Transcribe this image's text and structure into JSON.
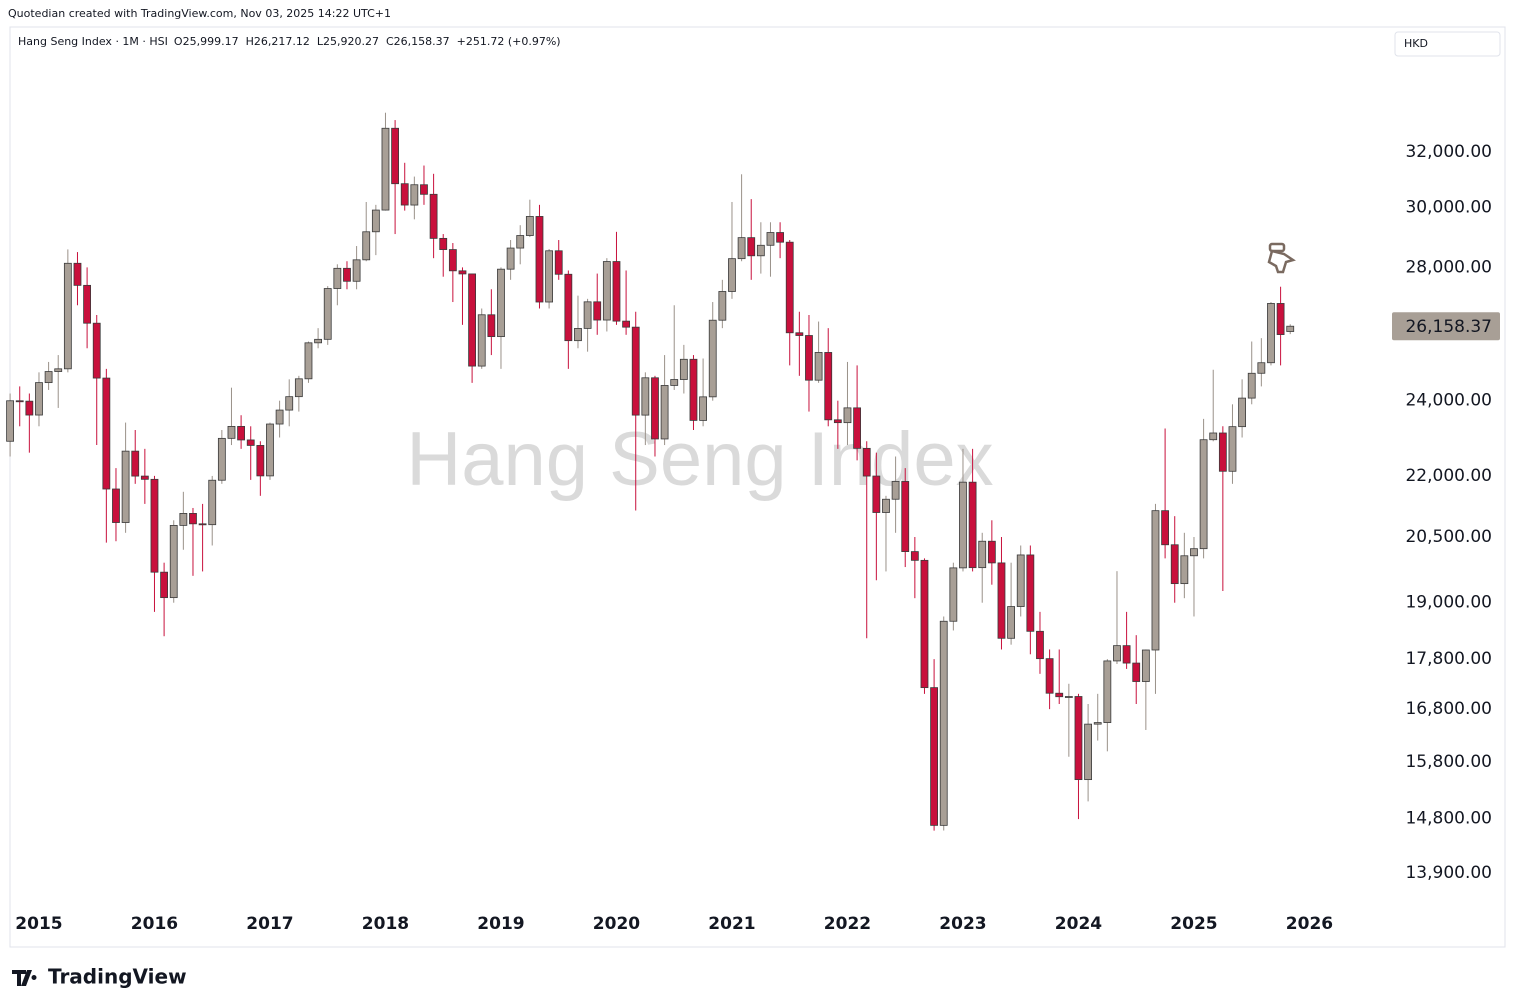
{
  "header": {
    "credit": "Quotedian created with TradingView.com, Nov 03, 2025 14:22 UTC+1",
    "symbol": "Hang Seng Index · 1M · HSI",
    "ohlc_labels": [
      "O25,999.17",
      "H26,217.12",
      "L25,920.27",
      "C26,158.37",
      "+251.72 (+0.97%)"
    ],
    "currency": "HKD",
    "brand": "TradingView"
  },
  "chart_data": {
    "type": "candlestick",
    "title": "Hang Seng Index",
    "log_scale": true,
    "grid": false,
    "up_color": "#a89f96",
    "down_color": "#c8103c",
    "border_color": "#3a3a3a",
    "categories": [
      null,
      null,
      null,
      "2015",
      null,
      null,
      null,
      null,
      null,
      null,
      null,
      null,
      null,
      null,
      null,
      "2016",
      null,
      null,
      null,
      null,
      null,
      null,
      null,
      null,
      null,
      null,
      null,
      "2017",
      null,
      null,
      null,
      null,
      null,
      null,
      null,
      null,
      null,
      null,
      null,
      "2018",
      null,
      null,
      null,
      null,
      null,
      null,
      null,
      null,
      null,
      null,
      null,
      "2019",
      null,
      null,
      null,
      null,
      null,
      null,
      null,
      null,
      null,
      null,
      null,
      "2020",
      null,
      null,
      null,
      null,
      null,
      null,
      null,
      null,
      null,
      null,
      null,
      "2021",
      null,
      null,
      null,
      null,
      null,
      null,
      null,
      null,
      null,
      null,
      null,
      "2022",
      null,
      null,
      null,
      null,
      null,
      null,
      null,
      null,
      null,
      null,
      null,
      "2023",
      null,
      null,
      null,
      null,
      null,
      null,
      null,
      null,
      null,
      null,
      null,
      "2024",
      null,
      null,
      null,
      null,
      null,
      null,
      null,
      null,
      null,
      null,
      null,
      "2025",
      null,
      null,
      null,
      null,
      null,
      null,
      null,
      null,
      null,
      null,
      null,
      "2026"
    ],
    "open": [
      22900,
      23998,
      23987,
      23605,
      24507,
      24823,
      24901,
      28133,
      27424,
      26250,
      24636,
      21670,
      20846,
      22640,
      21996,
      21914,
      19683,
      19112,
      20777,
      21067,
      20815,
      20794,
      21891,
      22977,
      23297,
      22935,
      22790,
      22001,
      23361,
      23741,
      24112,
      24615,
      25661,
      25765,
      27324,
      27970,
      27554,
      28246,
      29177,
      29919,
      32887,
      30845,
      30093,
      30808,
      30469,
      28955,
      28583,
      27889,
      27789,
      24980,
      26507,
      25846,
      27942,
      28633,
      29051,
      29699,
      26901,
      28543,
      27778,
      25725,
      26092,
      26907,
      26346,
      28190,
      26313,
      26130,
      23603,
      24644,
      22961,
      24427,
      24595,
      25177,
      23459,
      24107,
      26341,
      27231,
      28284,
      28980,
      28378,
      28725,
      29152,
      28828,
      25961,
      25879,
      24576,
      25377,
      23475,
      23398,
      23802,
      22713,
      21997,
      21089,
      21415,
      21860,
      20157,
      19954,
      17223,
      14687,
      18597,
      19781,
      21842,
      19786,
      20400,
      19895,
      18234,
      18916,
      20079,
      18382,
      17810,
      17112,
      17043,
      17047,
      15485,
      16511,
      16541,
      17763,
      18080,
      17719,
      17345,
      17989,
      21134,
      20317,
      19424,
      20060,
      20225,
      22941,
      23120,
      22119,
      23290,
      24072,
      24773,
      25077,
      26856,
      25999.17,
      null,
      null
    ],
    "high": [
      24200,
      24400,
      24200,
      24800,
      25100,
      25300,
      28588,
      28500,
      28000,
      26500,
      24900,
      22200,
      23400,
      23200,
      22700,
      22000,
      19900,
      20900,
      21600,
      21200,
      21300,
      22000,
      23200,
      24364,
      23600,
      23300,
      22900,
      23400,
      24000,
      24600,
      24700,
      25700,
      26100,
      27400,
      28100,
      28200,
      28700,
      30200,
      30100,
      33484,
      33200,
      31600,
      31100,
      31500,
      31200,
      29100,
      28800,
      28000,
      27800,
      26700,
      27300,
      28000,
      28900,
      29400,
      30280,
      30100,
      28600,
      28900,
      27900,
      27100,
      27000,
      27800,
      28300,
      29175,
      27900,
      26600,
      24800,
      24700,
      25300,
      26800,
      25600,
      25300,
      25200,
      26900,
      27600,
      30200,
      31183,
      30300,
      29500,
      29500,
      29500,
      28900,
      26600,
      26500,
      26300,
      26100,
      24000,
      25100,
      25000,
      22900,
      22600,
      21500,
      22500,
      22200,
      20500,
      20000,
      17800,
      18700,
      19900,
      22700,
      22700,
      20600,
      20900,
      20500,
      19900,
      20300,
      20300,
      18800,
      18000,
      18000,
      17300,
      17100,
      16900,
      17100,
      17800,
      19706,
      18800,
      18300,
      18000,
      21300,
      23241,
      21000,
      20600,
      20500,
      23500,
      24874,
      23300,
      23900,
      24600,
      25700,
      25800,
      26900,
      27381,
      26217.12,
      null,
      null
    ],
    "low": [
      22500,
      23300,
      22600,
      23300,
      24300,
      23800,
      24800,
      26800,
      25500,
      22800,
      20368,
      20400,
      20600,
      21800,
      21300,
      18800,
      18278,
      19000,
      20200,
      19600,
      19700,
      20300,
      21800,
      22800,
      22700,
      21900,
      21500,
      21900,
      23000,
      23300,
      23700,
      24500,
      25500,
      25600,
      26800,
      27300,
      27300,
      28200,
      28400,
      29900,
      29100,
      29900,
      29600,
      30100,
      28300,
      27700,
      26900,
      26200,
      24500,
      24900,
      25300,
      24900,
      27600,
      28100,
      29000,
      26700,
      26700,
      27600,
      24900,
      25500,
      25400,
      25900,
      26000,
      26200,
      25900,
      21139,
      22800,
      22500,
      22800,
      24300,
      24200,
      23200,
      23300,
      24000,
      26100,
      27000,
      28200,
      27600,
      27800,
      27700,
      28300,
      25000,
      24700,
      23700,
      24500,
      23300,
      22700,
      22800,
      22400,
      18235,
      19500,
      19700,
      20600,
      19800,
      19100,
      17100,
      14597,
      14600,
      18400,
      19700,
      19700,
      19000,
      19400,
      18000,
      18100,
      18700,
      17900,
      17500,
      16800,
      16900,
      15900,
      14794,
      15100,
      16200,
      16000,
      17700,
      17600,
      16900,
      16400,
      17100,
      20000,
      19000,
      19100,
      18700,
      20000,
      22900,
      19260,
      21800,
      23000,
      23900,
      24400,
      25000,
      25000,
      25920.27,
      null,
      null
    ],
    "close": [
      23998,
      23987,
      23605,
      24507,
      24823,
      24901,
      28133,
      27424,
      26250,
      24636,
      21670,
      20846,
      22640,
      21996,
      21914,
      19683,
      19112,
      20777,
      21067,
      20815,
      20794,
      21891,
      22977,
      23297,
      22935,
      22790,
      22001,
      23361,
      23741,
      24112,
      24615,
      25661,
      25765,
      27324,
      27970,
      27554,
      28246,
      29177,
      29919,
      32887,
      30845,
      30093,
      30808,
      30469,
      28955,
      28583,
      27889,
      27789,
      24980,
      26507,
      25846,
      27942,
      28633,
      29051,
      29699,
      26901,
      28543,
      27778,
      25725,
      26092,
      26907,
      26346,
      28190,
      26313,
      26130,
      23603,
      24644,
      22961,
      24427,
      24595,
      25177,
      23459,
      24107,
      26341,
      27231,
      28284,
      28980,
      28378,
      28725,
      29152,
      28828,
      25961,
      25879,
      24576,
      25377,
      23475,
      23398,
      23802,
      22713,
      21997,
      21089,
      21415,
      21860,
      20157,
      19954,
      17223,
      14687,
      18597,
      19781,
      21842,
      19786,
      20400,
      19895,
      18234,
      18916,
      20079,
      18382,
      17810,
      17112,
      17043,
      17047,
      15485,
      16511,
      16541,
      17763,
      18080,
      17719,
      17345,
      17989,
      21134,
      20317,
      19424,
      20060,
      20225,
      22941,
      23120,
      22119,
      23290,
      24072,
      24773,
      25077,
      26856,
      25907,
      26158.37,
      null,
      null
    ],
    "ylim": [
      13395,
      36930
    ],
    "yticks": [
      {
        "value": 32000,
        "label": "32,000.00"
      },
      {
        "value": 30000,
        "label": "30,000.00"
      },
      {
        "value": 28000,
        "label": "28,000.00"
      },
      {
        "value": 24000,
        "label": "24,000.00"
      },
      {
        "value": 22000,
        "label": "22,000.00"
      },
      {
        "value": 20500,
        "label": "20,500.00"
      },
      {
        "value": 19000,
        "label": "19,000.00"
      },
      {
        "value": 17800,
        "label": "17,800.00"
      },
      {
        "value": 16800,
        "label": "16,800.00"
      },
      {
        "value": 15800,
        "label": "15,800.00"
      },
      {
        "value": 14800,
        "label": "14,800.00"
      },
      {
        "value": 13900,
        "label": "13,900.00"
      }
    ],
    "last_price": {
      "value": 26158.37,
      "label": "26,158.37"
    }
  }
}
